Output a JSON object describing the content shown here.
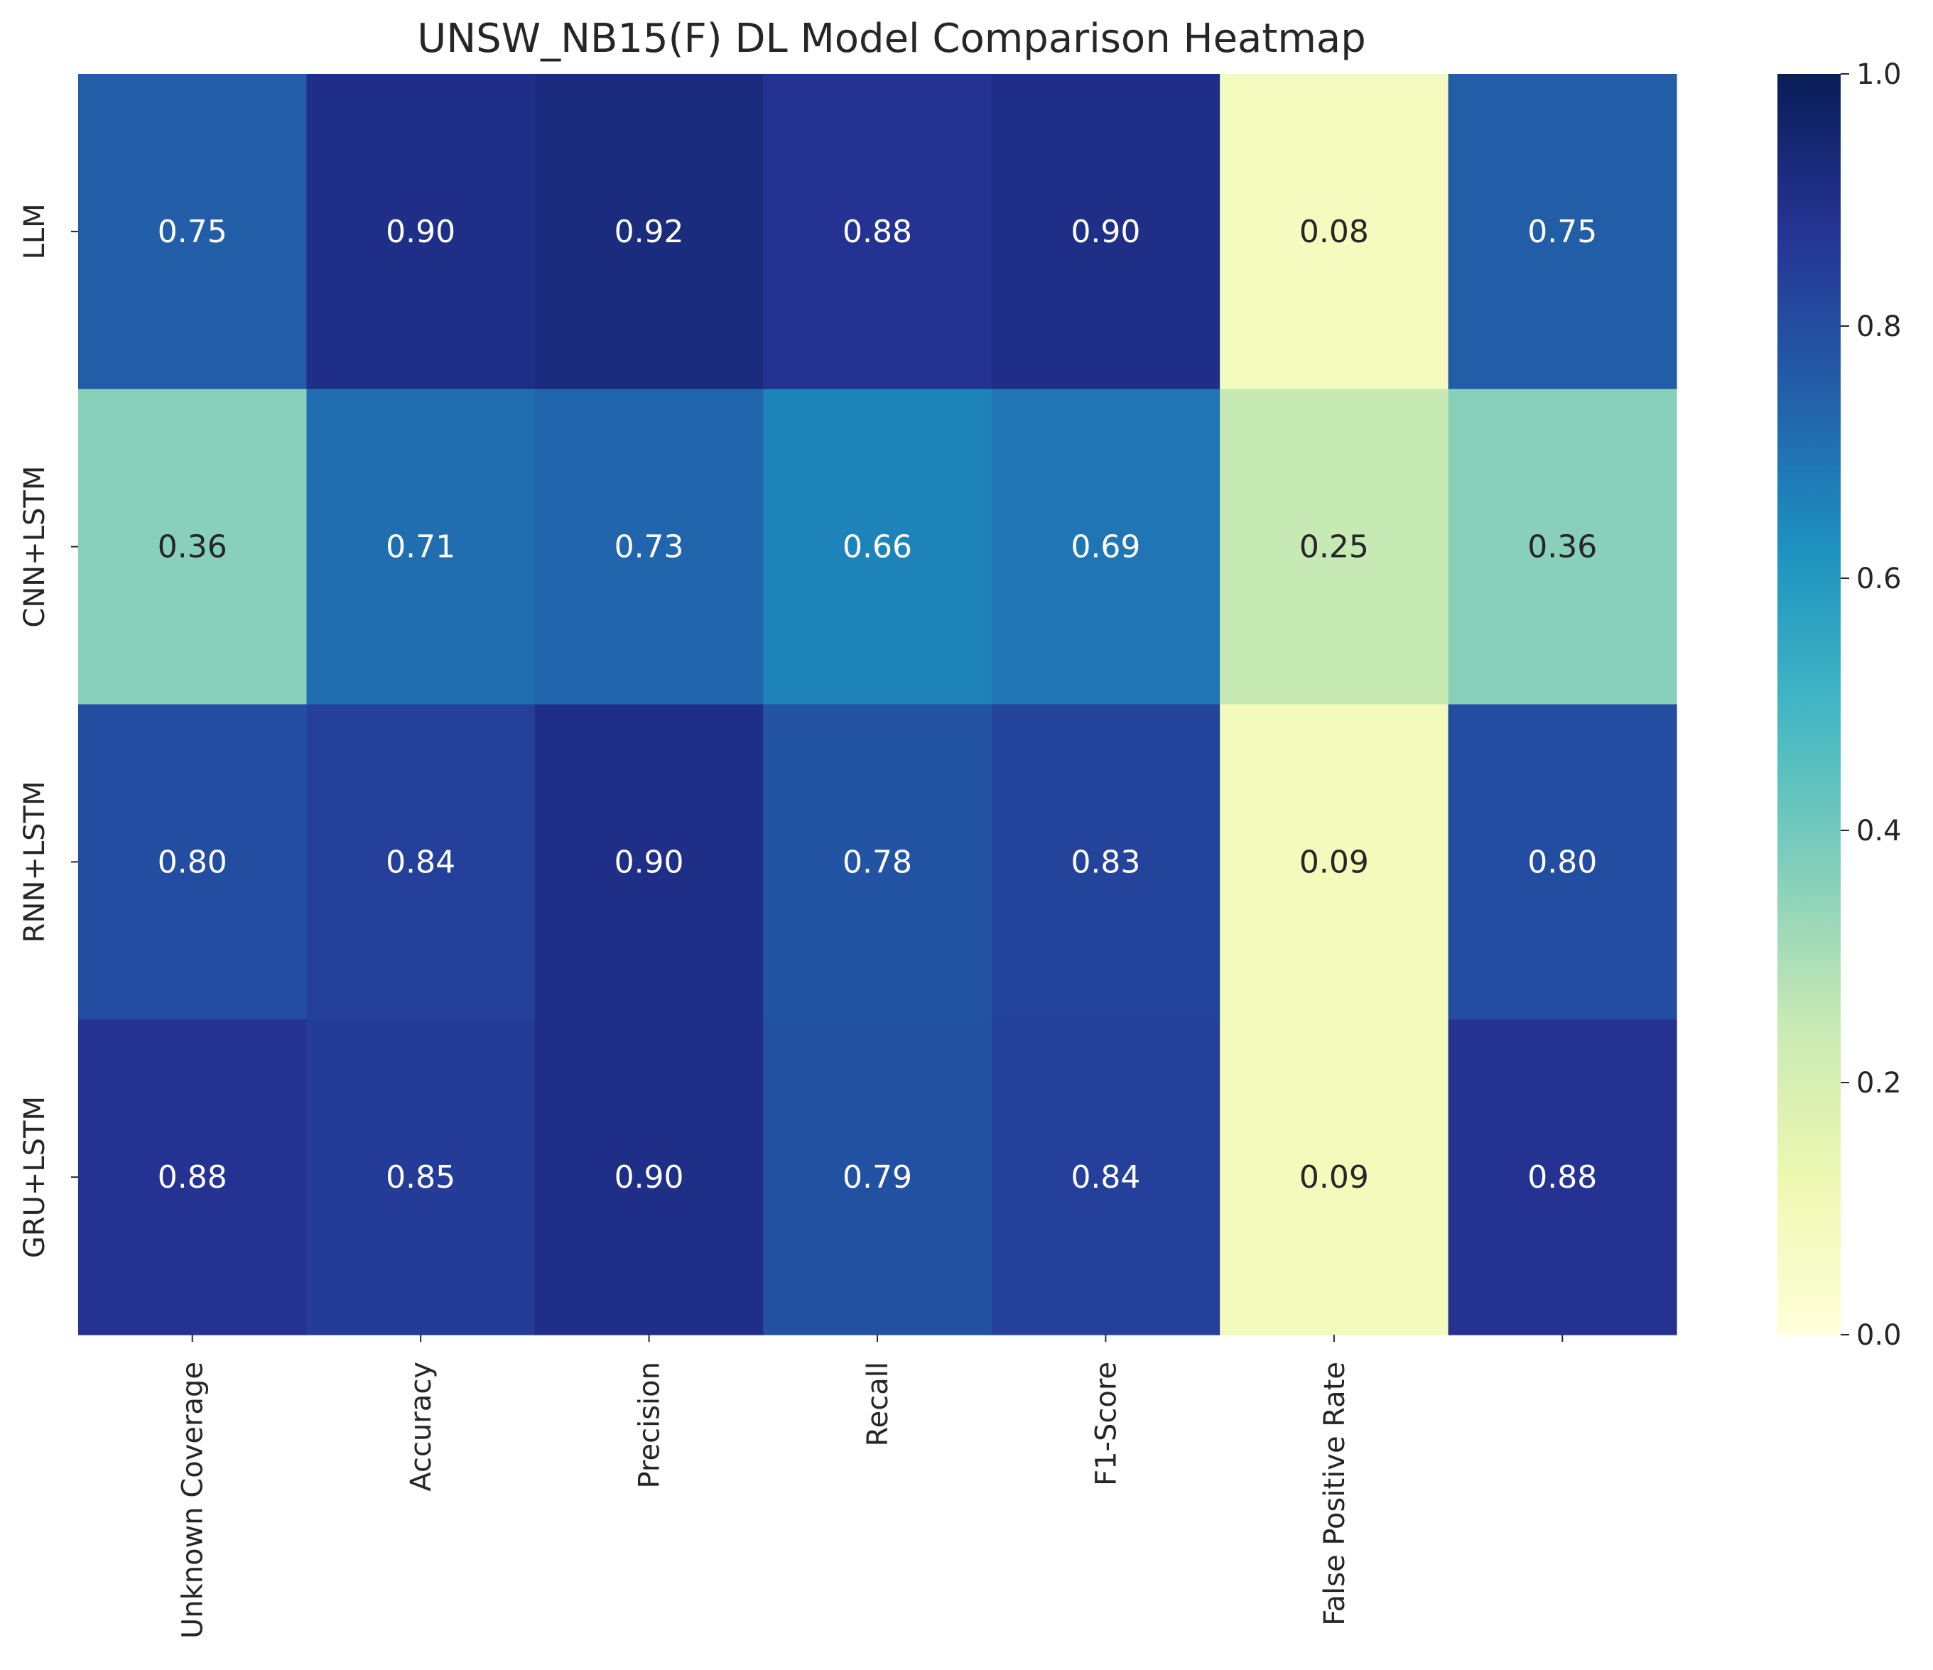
{
  "chart_data": {
    "type": "heatmap",
    "title": "UNSW_NB15(F) DL Model Comparison Heatmap",
    "xlabel": "",
    "ylabel": "",
    "rows": [
      "LLM",
      "CNN+LSTM",
      "RNN+LSTM",
      "GRU+LSTM"
    ],
    "columns": [
      "Unknown Coverage",
      "Accuracy",
      "Precision",
      "Recall",
      "F1-Score",
      "False Positive Rate",
      ""
    ],
    "values": [
      [
        0.75,
        0.9,
        0.92,
        0.88,
        0.9,
        0.08,
        0.75
      ],
      [
        0.36,
        0.71,
        0.73,
        0.66,
        0.69,
        0.25,
        0.36
      ],
      [
        0.8,
        0.84,
        0.9,
        0.78,
        0.83,
        0.09,
        0.8
      ],
      [
        0.88,
        0.85,
        0.9,
        0.79,
        0.84,
        0.09,
        0.88
      ]
    ],
    "cell_labels": [
      [
        "0.75",
        "0.90",
        "0.92",
        "0.88",
        "0.90",
        "0.08",
        "0.75"
      ],
      [
        "0.36",
        "0.71",
        "0.73",
        "0.66",
        "0.69",
        "0.25",
        "0.36"
      ],
      [
        "0.80",
        "0.84",
        "0.90",
        "0.78",
        "0.83",
        "0.09",
        "0.80"
      ],
      [
        "0.88",
        "0.85",
        "0.90",
        "0.79",
        "0.84",
        "0.09",
        "0.88"
      ]
    ],
    "colormap": "YlGnBu",
    "color_range": [
      0,
      1
    ],
    "colorbar_ticks": [
      "0.0",
      "0.2",
      "0.4",
      "0.6",
      "0.8",
      "1.0"
    ],
    "colorbar_tick_values": [
      0,
      0.2,
      0.4,
      0.6,
      0.8,
      1.0
    ],
    "grid": false,
    "colorbar_placement": "right"
  }
}
